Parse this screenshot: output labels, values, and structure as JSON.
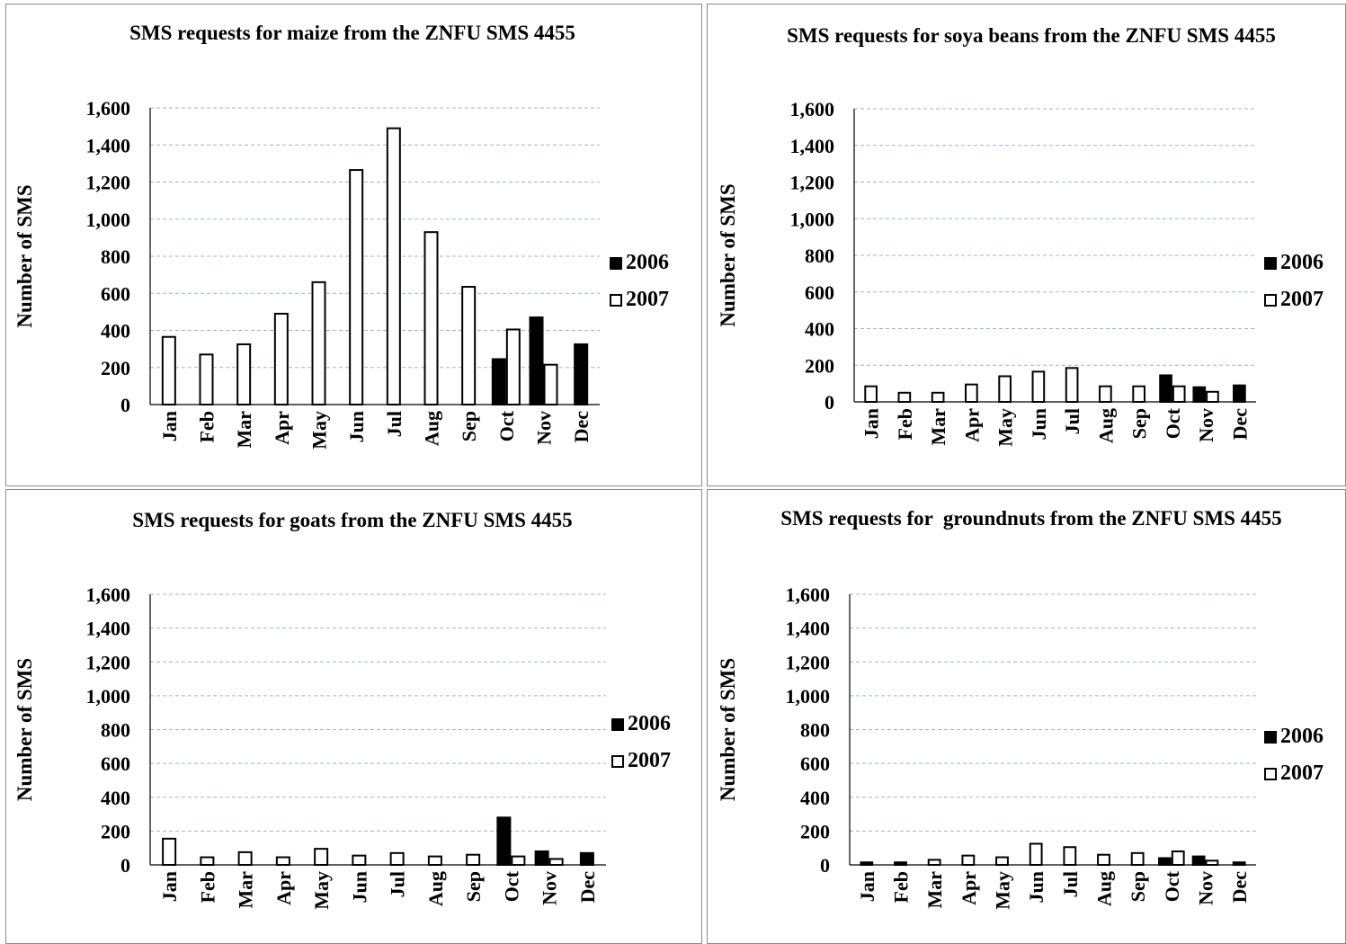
{
  "chart_data": [
    {
      "type": "bar",
      "title": "SMS requests for maize from the ZNFU SMS 4455",
      "ylabel": "Number of SMS",
      "xlabel": "",
      "categories": [
        "Jan",
        "Feb",
        "Mar",
        "Apr",
        "May",
        "Jun",
        "Jul",
        "Aug",
        "Sep",
        "Oct",
        "Nov",
        "Dec"
      ],
      "yticks": [
        "0",
        "200",
        "400",
        "600",
        "800",
        "1,000",
        "1,200",
        "1,400",
        "1,600"
      ],
      "ylim": [
        0,
        1600
      ],
      "grid": true,
      "legend_position": "right",
      "series": [
        {
          "name": "2006",
          "color": "#000000",
          "values": [
            null,
            null,
            null,
            null,
            null,
            null,
            null,
            null,
            null,
            245,
            470,
            325
          ]
        },
        {
          "name": "2007",
          "color": "#ffffff",
          "values": [
            365,
            270,
            325,
            490,
            660,
            1265,
            1490,
            930,
            635,
            405,
            215,
            null
          ]
        }
      ]
    },
    {
      "type": "bar",
      "title": "SMS requests for soya beans from the ZNFU SMS 4455",
      "ylabel": "Number of SMS",
      "xlabel": "",
      "categories": [
        "Jan",
        "Feb",
        "Mar",
        "Apr",
        "May",
        "Jun",
        "Jul",
        "Aug",
        "Sep",
        "Oct",
        "Nov",
        "Dec"
      ],
      "yticks": [
        "0",
        "200",
        "400",
        "600",
        "800",
        "1,000",
        "1,200",
        "1,400",
        "1,600"
      ],
      "ylim": [
        0,
        1600
      ],
      "grid": true,
      "legend_position": "right",
      "series": [
        {
          "name": "2006",
          "color": "#000000",
          "values": [
            null,
            null,
            null,
            null,
            null,
            null,
            null,
            null,
            null,
            145,
            80,
            90
          ]
        },
        {
          "name": "2007",
          "color": "#ffffff",
          "values": [
            85,
            50,
            50,
            95,
            140,
            165,
            185,
            85,
            85,
            85,
            55,
            null
          ]
        }
      ]
    },
    {
      "type": "bar",
      "title": "SMS requests for goats from the ZNFU SMS 4455",
      "ylabel": "Number of SMS",
      "xlabel": "",
      "categories": [
        "Jan",
        "Feb",
        "Mar",
        "Apr",
        "May",
        "Jun",
        "Jul",
        "Aug",
        "Sep",
        "Oct",
        "Nov",
        "Dec"
      ],
      "yticks": [
        "0",
        "200",
        "400",
        "600",
        "800",
        "1,000",
        "1,200",
        "1,400",
        "1,600"
      ],
      "ylim": [
        0,
        1600
      ],
      "grid": true,
      "legend_position": "right",
      "series": [
        {
          "name": "2006",
          "color": "#000000",
          "values": [
            null,
            null,
            null,
            null,
            null,
            null,
            null,
            null,
            null,
            280,
            80,
            70
          ]
        },
        {
          "name": "2007",
          "color": "#ffffff",
          "values": [
            155,
            45,
            75,
            45,
            95,
            55,
            70,
            50,
            60,
            50,
            35,
            null
          ]
        }
      ]
    },
    {
      "type": "bar",
      "title": "SMS requests for  groundnuts from the ZNFU SMS 4455",
      "ylabel": "Number of SMS",
      "xlabel": "",
      "categories": [
        "Jan",
        "Feb",
        "Mar",
        "Apr",
        "May",
        "Jun",
        "Jul",
        "Aug",
        "Sep",
        "Oct",
        "Nov",
        "Dec"
      ],
      "yticks": [
        "0",
        "200",
        "400",
        "600",
        "800",
        "1,000",
        "1,200",
        "1,400",
        "1,600"
      ],
      "ylim": [
        0,
        1600
      ],
      "grid": true,
      "legend_position": "right",
      "series": [
        {
          "name": "2006",
          "color": "#000000",
          "values": [
            15,
            15,
            null,
            null,
            null,
            null,
            null,
            null,
            null,
            40,
            50,
            15
          ]
        },
        {
          "name": "2007",
          "color": "#ffffff",
          "values": [
            null,
            null,
            30,
            55,
            45,
            125,
            105,
            60,
            70,
            80,
            25,
            null
          ]
        }
      ]
    }
  ]
}
